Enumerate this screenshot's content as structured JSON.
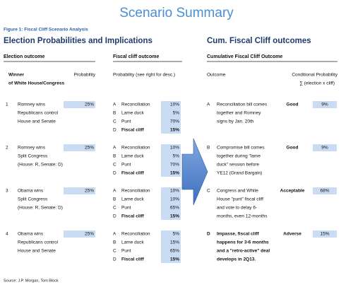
{
  "title": "Scenario Summary",
  "figure_label": "Figure 1: Fiscal Cliff Scenario Analysis",
  "left_heading": "Election Probabilities and Implications",
  "right_heading": "Cum. Fiscal Cliff outcomes",
  "election_header": {
    "section": "Election outcome",
    "winner": [
      "Winner",
      "of White House/Congress"
    ],
    "probability": "Probability"
  },
  "cliff_header": {
    "section": "Fiscal cliff outcome",
    "probability": "Probability (see right for desc.)"
  },
  "outcome_header": {
    "section": "Cumulative Fiscal Cliff Outcome",
    "outcome": "Outcome",
    "conditional": [
      "Conditional Probability",
      "∑ (election x cliff)"
    ]
  },
  "scenarios": [
    {
      "number": "1",
      "winner": [
        "Romney wins",
        "Republicans control",
        "House and Senate"
      ],
      "probability": "25%",
      "cliff": [
        {
          "letter": "A",
          "label": "Reconciliation",
          "probability": "10%"
        },
        {
          "letter": "B",
          "label": "Lame duck",
          "probability": "5%"
        },
        {
          "letter": "C",
          "label": "Punt",
          "probability": "70%"
        },
        {
          "letter": "D",
          "label": "Fiscal cliff",
          "probability": "15%"
        }
      ]
    },
    {
      "number": "2",
      "winner": [
        "Romney wins",
        "Split Congress",
        "(House: R, Senate: D)"
      ],
      "probability": "25%",
      "cliff": [
        {
          "letter": "A",
          "label": "Reconciliation",
          "probability": "10%"
        },
        {
          "letter": "B",
          "label": "Lame duck",
          "probability": "5%"
        },
        {
          "letter": "C",
          "label": "Punt",
          "probability": "70%"
        },
        {
          "letter": "D",
          "label": "Fiscal cliff",
          "probability": "15%"
        }
      ]
    },
    {
      "number": "3",
      "winner": [
        "Obama wins",
        "Split Congress",
        "(House: R, Senate: D)"
      ],
      "probability": "25%",
      "cliff": [
        {
          "letter": "A",
          "label": "Reconciliation",
          "probability": "10%"
        },
        {
          "letter": "B",
          "label": "Lame duck",
          "probability": "10%"
        },
        {
          "letter": "C",
          "label": "Punt",
          "probability": "65%"
        },
        {
          "letter": "D",
          "label": "Fiscal cliff",
          "probability": "15%"
        }
      ]
    },
    {
      "number": "4",
      "winner": [
        "Obama wins",
        "Republicans control",
        "House and Senate"
      ],
      "probability": "25%",
      "cliff": [
        {
          "letter": "A",
          "label": "Reconciliation",
          "probability": "5%"
        },
        {
          "letter": "B",
          "label": "Lame duck",
          "probability": "15%"
        },
        {
          "letter": "C",
          "label": "Punt",
          "probability": "65%"
        },
        {
          "letter": "D",
          "label": "Fiscal cliff",
          "probability": "15%"
        }
      ]
    }
  ],
  "outcomes": [
    {
      "letter": "A",
      "description": [
        "Reconciliation bill comes",
        "together and Romney",
        "signs by Jan. 20th"
      ],
      "rating": "Good",
      "probability": "9%"
    },
    {
      "letter": "B",
      "description": [
        "Compromise bill comes",
        "together during \"lame",
        "duck\" session before",
        "YE12 (Grand Bargain)"
      ],
      "rating": "Good",
      "probability": "9%"
    },
    {
      "letter": "C",
      "description": [
        "Congress and White",
        "House \"punt\" fiscal cliff",
        "and vote to delay 6-",
        "months, even 12-months"
      ],
      "rating": "Acceptable",
      "probability": "68%"
    },
    {
      "letter": "D",
      "description": [
        "Impasse, fiscal cliff",
        "happens for 3-6 months",
        "and a \"retro-active\" deal",
        "develops in 2Q13."
      ],
      "rating": "Adverse",
      "probability": "15%"
    }
  ],
  "source": "Source: J.P. Morgan, Tom Block"
}
